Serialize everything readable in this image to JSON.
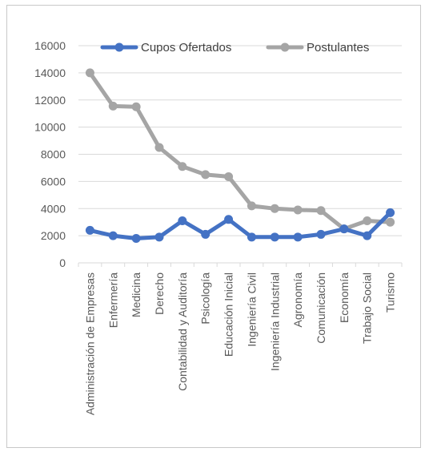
{
  "chart_data": {
    "type": "line",
    "categories": [
      "Administración de Empresas",
      "Enfermería",
      "Medicina",
      "Derecho",
      "Contabilidad y Auditoría",
      "Psicología",
      "Educación Inicial",
      "Ingeniería Civil",
      "Ingeniería Industrial",
      "Agronomía",
      "Comunicación",
      "Economía",
      "Trabajo Social",
      "Turismo"
    ],
    "series": [
      {
        "name": "Cupos Ofertados",
        "color": "#4472C4",
        "values": [
          2400,
          2000,
          1800,
          1900,
          3100,
          2100,
          3200,
          1900,
          1900,
          1900,
          2100,
          2500,
          2000,
          3700
        ]
      },
      {
        "name": "Postulantes",
        "color": "#A5A5A5",
        "values": [
          14000,
          11550,
          11500,
          8500,
          7100,
          6500,
          6350,
          4200,
          4000,
          3900,
          3850,
          2500,
          3100,
          3000
        ]
      }
    ],
    "ylim": [
      0,
      16000
    ],
    "yticks": [
      0,
      2000,
      4000,
      6000,
      8000,
      10000,
      12000,
      14000,
      16000
    ],
    "grid": true,
    "legend_position": "top"
  }
}
